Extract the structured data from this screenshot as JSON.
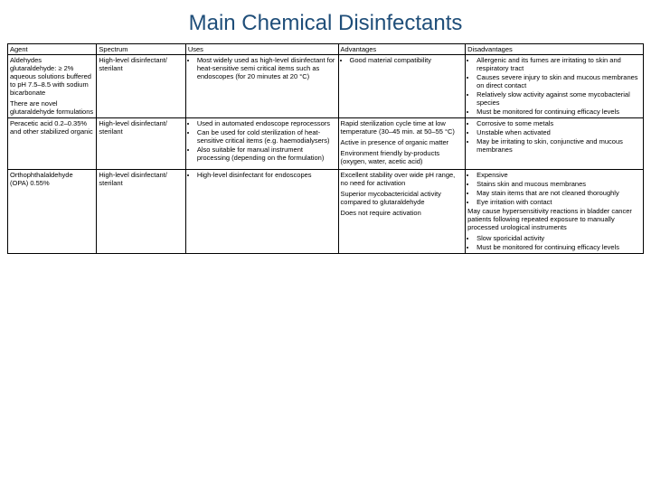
{
  "title": "Main Chemical Disinfectants",
  "headers": {
    "agent": "Agent",
    "spectrum": "Spectrum",
    "uses": "Uses",
    "advantages": "Advantages",
    "disadvantages": "Disadvantages"
  },
  "rows": [
    {
      "agent_title": "Aldehydes",
      "agent_detail": "glutaraldehyde: ≥ 2% aqueous solutions buffered to pH 7.5–8.5 with sodium bicarbonate",
      "agent_note": "There are novel glutaraldehyde formulations",
      "spectrum": "High-level disinfectant/ sterilant",
      "uses": [
        "Most widely used as high-level disinfectant for heat-sensitive semi critical items such as endoscopes (for 20 minutes at 20 °C)"
      ],
      "advantages": [
        "Good material compatibility"
      ],
      "disadvantages": [
        "Allergenic and its fumes are irritating to skin and respiratory tract",
        "Causes severe injury to skin and mucous membranes on direct contact",
        "Relatively slow activity against some mycobacterial species",
        "Must be monitored for continuing efficacy levels"
      ]
    },
    {
      "agent_title": "Peracetic acid 0.2–0.35% and other stabilized organic",
      "agent_detail": "",
      "agent_note": "",
      "spectrum": "High-level disinfectant/ sterilant",
      "uses": [
        "Used in automated endoscope reprocessors",
        "Can be used for cold sterilization of heat-sensitive critical items (e.g. haemodialysers)",
        "Also suitable for manual instrument processing (depending on the formulation)"
      ],
      "advantages_plain": [
        "Rapid sterilization cycle time at low temperature (30–45 min. at 50–55 °C)",
        "Active in presence of organic matter",
        "Environment friendly by-products (oxygen, water, acetic acid)"
      ],
      "disadvantages": [
        "Corrosive to some metals",
        "Unstable when activated",
        "May be irritating to skin, conjunctive and mucous membranes"
      ]
    },
    {
      "agent_title": "Orthophthalaldehyde",
      "agent_detail": "(OPA) 0.55%",
      "agent_note": "",
      "spectrum": "High-level disinfectant/ sterilant",
      "uses": [
        "High-level disinfectant for endoscopes"
      ],
      "advantages_plain": [
        "Excellent stability over wide pH range, no need for activation",
        "Superior mycobactericidal activity compared to glutaraldehyde",
        "Does not require activation"
      ],
      "disadvantages": [
        "Expensive",
        "Stains skin and mucous membranes",
        "May stain items that are not cleaned thoroughly",
        "Eye irritation with contact"
      ],
      "disadvantages_extra": "May cause hypersensitivity reactions in bladder cancer patients following repeated exposure to manually processed urological instruments",
      "disadvantages_after": [
        "Slow sporicidal activity",
        "Must be monitored for continuing efficacy levels"
      ]
    }
  ]
}
